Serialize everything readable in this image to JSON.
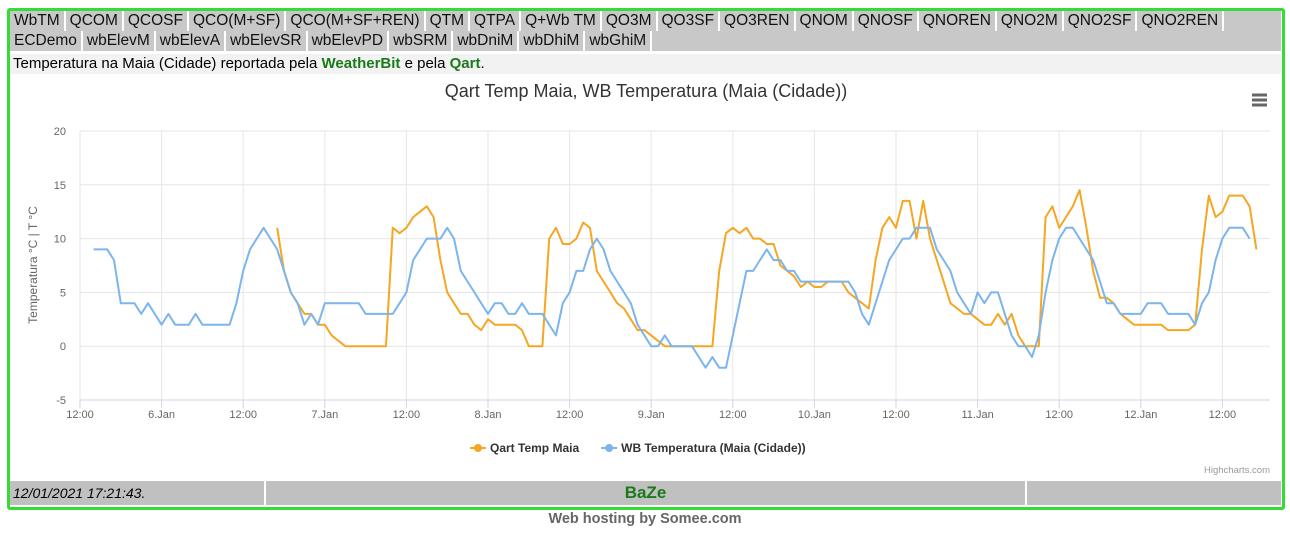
{
  "nav": {
    "tabs": [
      "WbTM",
      "QCOM",
      "QCOSF",
      "QCO(M+SF)",
      "QCO(M+SF+REN)",
      "QTM",
      "QTPA",
      "Q+Wb TM",
      "QO3M",
      "QO3SF",
      "QO3REN",
      "QNOM",
      "QNOSF",
      "QNOREN",
      "QNO2M",
      "QNO2SF",
      "QNO2REN",
      "ECDemo",
      "wbElevM",
      "wbElevA",
      "wbElevSR",
      "wbElevPD",
      "wbSRM",
      "wbDniM",
      "wbDhiM",
      "wbGhiM"
    ]
  },
  "intro": {
    "text_before": "Temperatura na Maia (Cidade) reportada pela",
    "source1": "WeatherBit",
    "text_middle": "e pela",
    "source2": "Qart",
    "text_after": "."
  },
  "chart_data": {
    "type": "line",
    "title": "Qart Temp Maia, WB Temperatura (Maia (Cidade))",
    "y_axis_label": "Temperatura °C | T °C",
    "xlim": [
      0,
      175
    ],
    "xticks": [
      {
        "value": 0,
        "label": "12:00"
      },
      {
        "value": 12,
        "label": "6.Jan"
      },
      {
        "value": 24,
        "label": "12:00"
      },
      {
        "value": 36,
        "label": "7.Jan"
      },
      {
        "value": 48,
        "label": "12:00"
      },
      {
        "value": 60,
        "label": "8.Jan"
      },
      {
        "value": 72,
        "label": "12:00"
      },
      {
        "value": 84,
        "label": "9.Jan"
      },
      {
        "value": 96,
        "label": "12:00"
      },
      {
        "value": 108,
        "label": "10.Jan"
      },
      {
        "value": 120,
        "label": "12:00"
      },
      {
        "value": 132,
        "label": "11.Jan"
      },
      {
        "value": 144,
        "label": "12:00"
      },
      {
        "value": 156,
        "label": "12.Jan"
      },
      {
        "value": 168,
        "label": "12:00"
      }
    ],
    "ylim": [
      -5,
      20
    ],
    "yticks": [
      -5,
      0,
      5,
      10,
      15,
      20
    ],
    "grid": true,
    "series": [
      {
        "name": "Qart Temp Maia",
        "color": "#f5a623",
        "x": [
          29,
          30,
          31,
          32,
          33,
          34,
          35,
          36,
          37,
          38,
          39,
          40,
          42,
          44,
          45,
          46,
          47,
          48,
          49,
          50,
          51,
          52,
          53,
          54,
          55,
          56,
          57,
          58,
          59,
          60,
          61,
          62,
          63,
          64,
          65,
          66,
          67,
          68,
          69,
          70,
          71,
          72,
          73,
          74,
          75,
          76,
          77,
          78,
          79,
          80,
          81,
          82,
          83,
          84,
          85,
          86,
          88,
          90,
          92,
          93,
          94,
          95,
          96,
          97,
          98,
          99,
          100,
          101,
          102,
          103,
          104,
          105,
          106,
          107,
          108,
          109,
          110,
          111,
          112,
          113,
          114,
          115,
          116,
          117,
          118,
          119,
          120,
          121,
          122,
          123,
          124,
          125,
          126,
          127,
          128,
          129,
          130,
          131,
          132,
          133,
          134,
          135,
          136,
          137,
          138,
          139,
          140,
          141,
          142,
          143,
          144,
          145,
          146,
          147,
          148,
          149,
          150,
          151,
          152,
          153,
          154,
          155,
          156,
          157,
          158,
          159,
          160,
          161,
          162,
          163,
          164,
          165,
          166,
          167,
          168,
          169,
          170,
          171,
          172,
          173
        ],
        "values": [
          11,
          7,
          5,
          4,
          3,
          3,
          2,
          2,
          1,
          0.5,
          0,
          0,
          0,
          0,
          0,
          11,
          10.5,
          11,
          12,
          12.5,
          13,
          12,
          8,
          5,
          4,
          3,
          3,
          2,
          1.5,
          2.5,
          2,
          2,
          2,
          2,
          1.5,
          0,
          0,
          0,
          10,
          11,
          9.5,
          9.5,
          10,
          11.5,
          11,
          7,
          6,
          5,
          4,
          3.5,
          2.5,
          1.5,
          1.5,
          1,
          0.5,
          0,
          0,
          0,
          0,
          0,
          7,
          10.5,
          11,
          10.5,
          11,
          10,
          10,
          9.5,
          9.5,
          7.5,
          7,
          6.5,
          5.5,
          6,
          5.5,
          5.5,
          6,
          6,
          6,
          5,
          4.5,
          4,
          3.5,
          8,
          11,
          12,
          11,
          13.5,
          13.5,
          10,
          13.5,
          10,
          8,
          6,
          4,
          3.5,
          3,
          3,
          2.5,
          2,
          2,
          3,
          2,
          3,
          1,
          0,
          0,
          0,
          12,
          13,
          11,
          12,
          13,
          14.5,
          11,
          7,
          4.5,
          4.5,
          4,
          3,
          2.5,
          2,
          2,
          2,
          2,
          2,
          1.5,
          1.5,
          1.5,
          1.5,
          2,
          9,
          14,
          12,
          12.5,
          14,
          14,
          14,
          13,
          9
        ]
      },
      {
        "name": "WB Temperatura (Maia (Cidade))",
        "color": "#7cb5ec",
        "x": [
          2,
          4,
          5,
          6,
          8,
          9,
          10,
          12,
          13,
          14,
          16,
          17,
          18,
          20,
          22,
          23,
          24,
          25,
          26,
          27,
          29,
          30,
          31,
          32,
          33,
          34,
          35,
          36,
          38,
          40,
          41,
          42,
          44,
          46,
          47,
          48,
          49,
          50,
          51,
          52,
          53,
          54,
          55,
          56,
          58,
          59,
          60,
          61,
          62,
          63,
          64,
          65,
          66,
          67,
          68,
          69,
          70,
          71,
          72,
          73,
          74,
          75,
          76,
          77,
          78,
          79,
          80,
          81,
          82,
          83,
          84,
          85,
          86,
          87,
          88,
          89,
          90,
          91,
          92,
          93,
          94,
          95,
          96,
          97,
          98,
          99,
          100,
          101,
          102,
          103,
          104,
          105,
          106,
          108,
          110,
          112,
          113,
          114,
          115,
          116,
          117,
          118,
          119,
          120,
          121,
          122,
          123,
          124,
          125,
          126,
          127,
          128,
          129,
          130,
          131,
          132,
          133,
          134,
          135,
          136,
          137,
          138,
          139,
          140,
          141,
          142,
          143,
          144,
          145,
          146,
          147,
          148,
          149,
          150,
          151,
          152,
          153,
          154,
          155,
          156,
          157,
          158,
          159,
          160,
          161,
          162,
          163,
          164,
          165,
          166,
          167,
          168,
          169,
          170,
          171,
          172
        ],
        "values": [
          9,
          9,
          8,
          4,
          4,
          3,
          4,
          2,
          3,
          2,
          2,
          3,
          2,
          2,
          2,
          4,
          7,
          9,
          10,
          11,
          9,
          7,
          5,
          4,
          2,
          3,
          2,
          4,
          4,
          4,
          4,
          3,
          3,
          3,
          4,
          5,
          8,
          9,
          10,
          10,
          10,
          11,
          10,
          7,
          5,
          4,
          3,
          4,
          4,
          3,
          3,
          4,
          3,
          3,
          3,
          2,
          1,
          4,
          5,
          7,
          7,
          9,
          10,
          9,
          7,
          6,
          5,
          4,
          2,
          1,
          0,
          0,
          1,
          0,
          0,
          0,
          0,
          -1,
          -2,
          -1,
          -2,
          -2,
          1,
          4,
          7,
          7,
          8,
          9,
          8,
          8,
          7,
          7,
          6,
          6,
          6,
          6,
          6,
          5,
          3,
          2,
          4,
          6,
          8,
          9,
          10,
          10,
          11,
          11,
          11,
          9,
          8,
          7,
          5,
          4,
          3,
          5,
          4,
          5,
          5,
          3,
          1,
          0,
          0,
          -1,
          1,
          5,
          8,
          10,
          11,
          11,
          10,
          9,
          8,
          6,
          4,
          4,
          3,
          3,
          3,
          3,
          4,
          4,
          4,
          3,
          3,
          3,
          3,
          2,
          4,
          5,
          8,
          10,
          11,
          11,
          11,
          10
        ]
      }
    ]
  },
  "credits": "Highcharts.com",
  "footer": {
    "timestamp": "12/01/2021 17:21:43.",
    "brand": "BaZe"
  },
  "hosting": "Web hosting by Somee.com"
}
